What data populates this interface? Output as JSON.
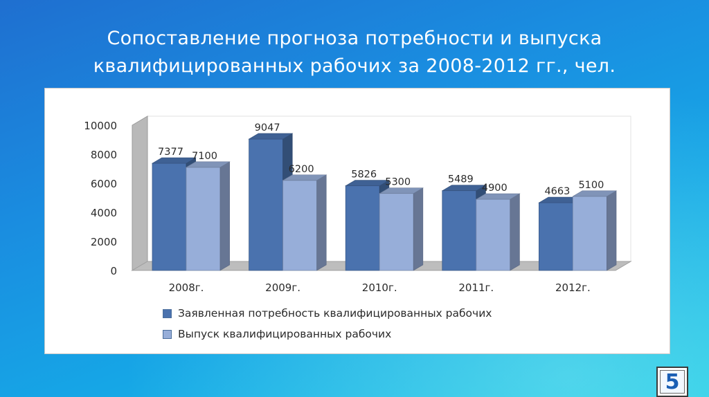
{
  "slide": {
    "title_line1": "Сопоставление прогноза потребности и выпуска",
    "title_line2": "квалифицированных рабочих за 2008-2012 гг., чел.",
    "page_number": "5"
  },
  "chart_data": {
    "type": "bar",
    "categories": [
      "2008г.",
      "2009г.",
      "2010г.",
      "2011г.",
      "2012г."
    ],
    "series": [
      {
        "name": "Заявленная потребность квалифицированных рабочих",
        "values": [
          7377,
          9047,
          5826,
          5489,
          4663
        ],
        "labels": [
          "7377",
          "9047",
          "5826",
          "5489",
          "4663"
        ],
        "color": "#4a72ae"
      },
      {
        "name": "Выпуск квалифицированных рабочих",
        "values": [
          7100,
          6200,
          5300,
          4900,
          5100
        ],
        "labels": [
          "7100",
          "6200",
          "5300",
          "4900",
          "5100"
        ],
        "color": "#97aed9"
      }
    ],
    "yticks": [
      "0",
      "2000",
      "4000",
      "6000",
      "8000",
      "10000"
    ],
    "ylim": [
      0,
      10000
    ],
    "grid": false,
    "three_d": true,
    "legend_position": "bottom"
  }
}
